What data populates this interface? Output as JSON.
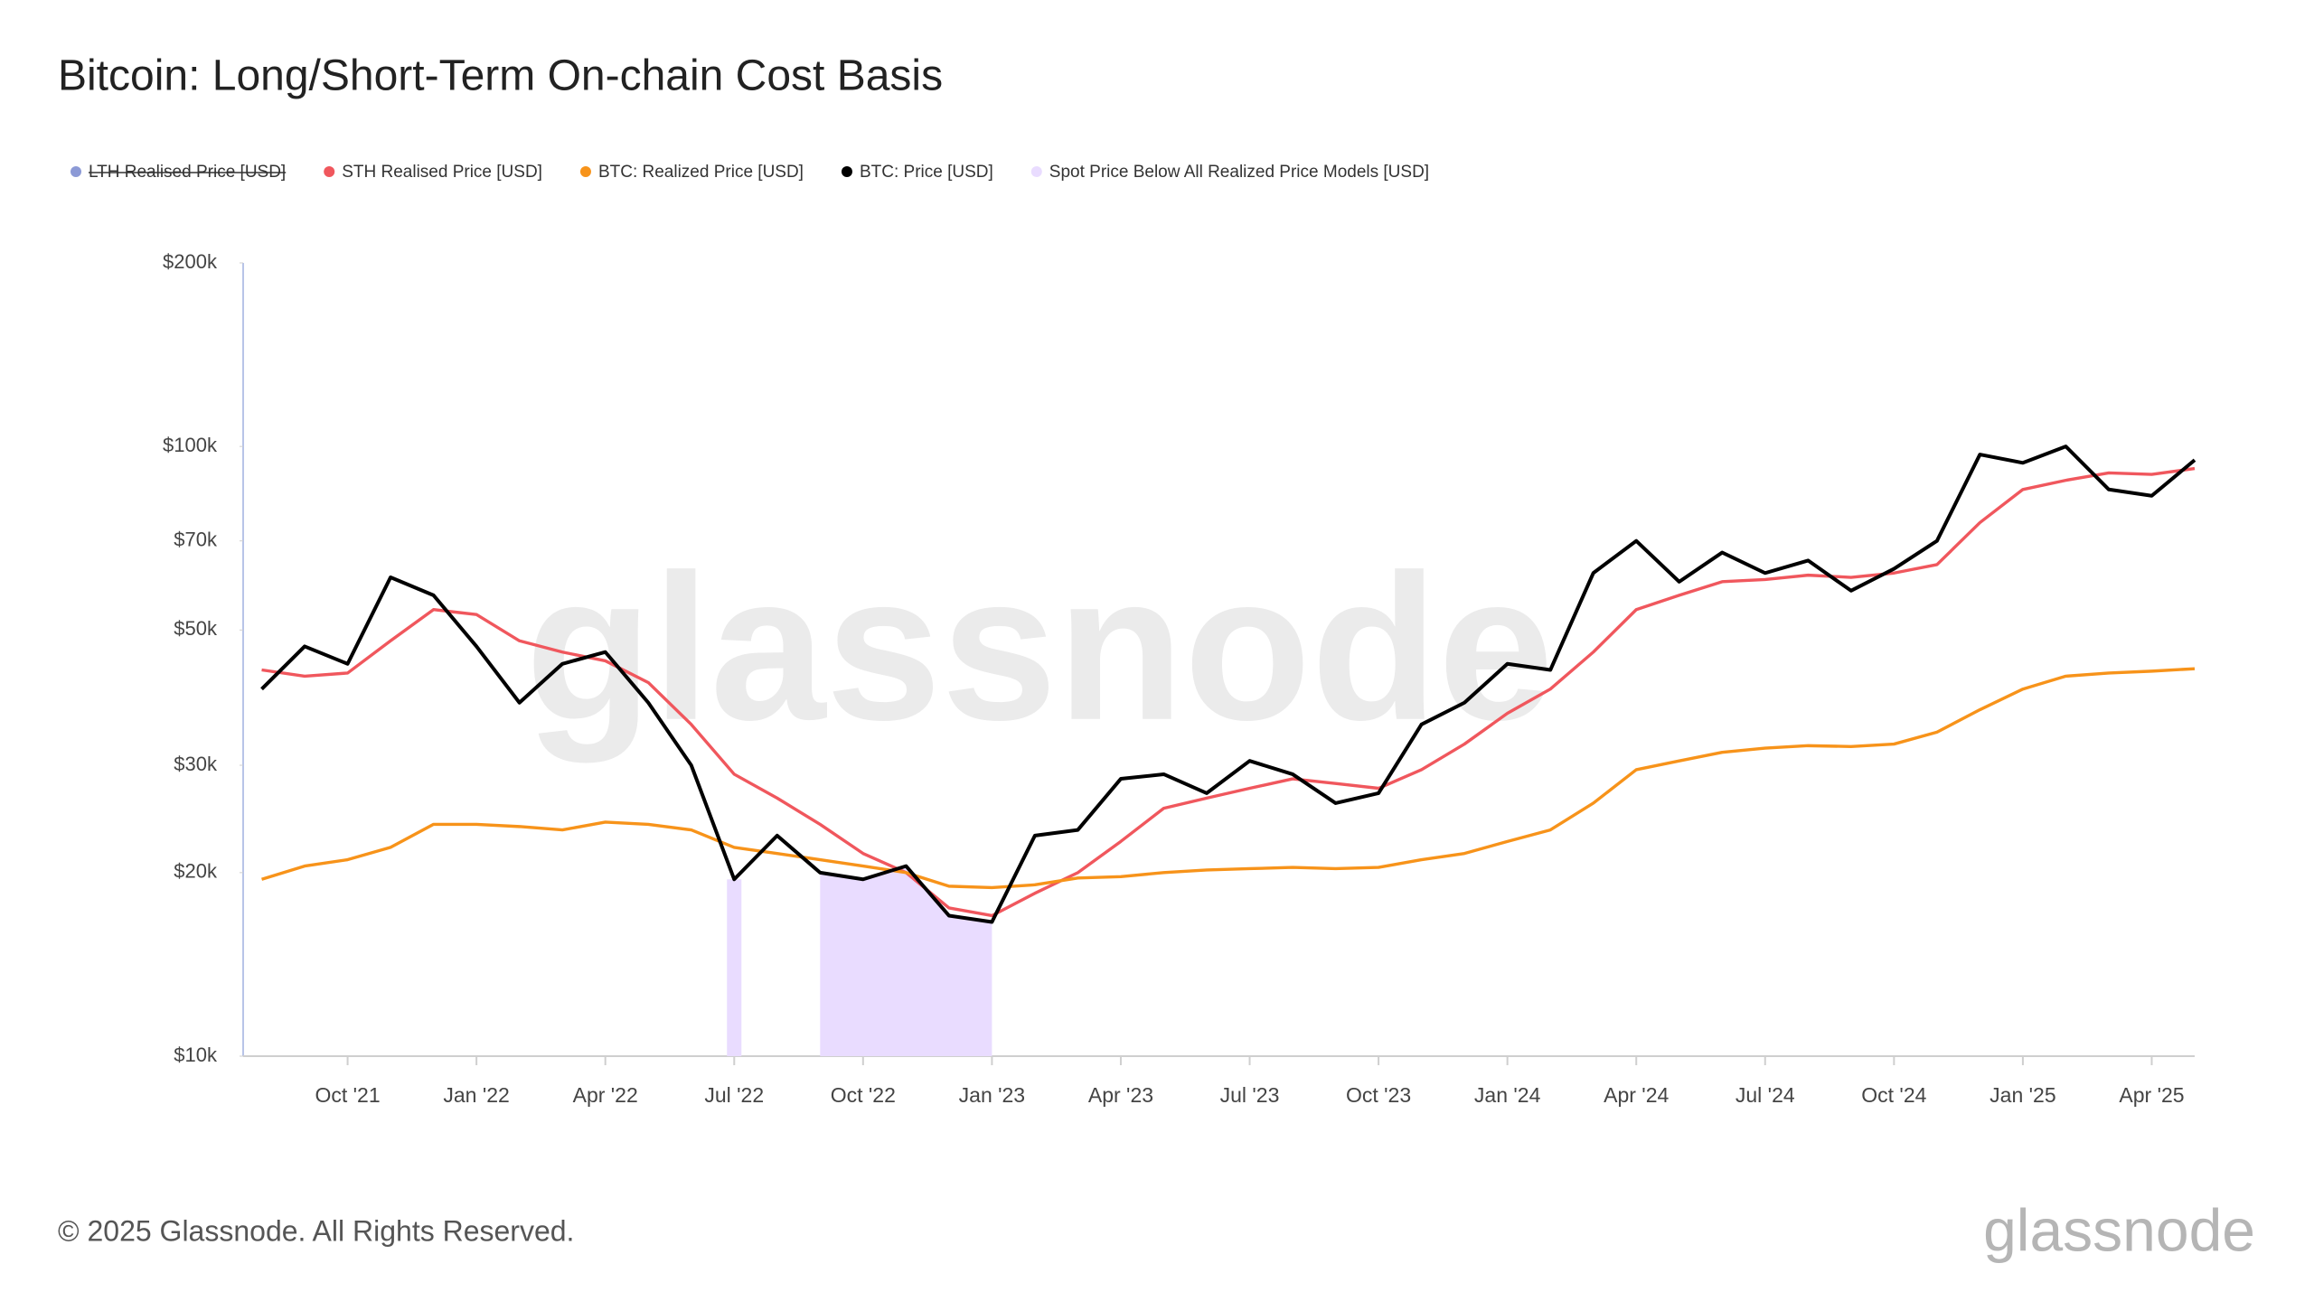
{
  "chart_data": {
    "type": "line",
    "title": "Bitcoin: Long/Short-Term On-chain Cost Basis",
    "footer": "© 2025 Glassnode. All Rights Reserved.",
    "logo": "glassnode",
    "watermark": "glassnode",
    "log_scale": true,
    "ylim": [
      10000,
      200000
    ],
    "yticks": [
      {
        "value": 10000,
        "label": "$10k"
      },
      {
        "value": 20000,
        "label": "$20k"
      },
      {
        "value": 30000,
        "label": "$30k"
      },
      {
        "value": 50000,
        "label": "$50k"
      },
      {
        "value": 70000,
        "label": "$70k"
      },
      {
        "value": 100000,
        "label": "$100k"
      },
      {
        "value": 200000,
        "label": "$200k"
      }
    ],
    "xlim": [
      "2021-07",
      "2025-05"
    ],
    "xticks": [
      {
        "value": "2021-10",
        "label": "Oct '21"
      },
      {
        "value": "2022-01",
        "label": "Jan '22"
      },
      {
        "value": "2022-04",
        "label": "Apr '22"
      },
      {
        "value": "2022-07",
        "label": "Jul '22"
      },
      {
        "value": "2022-10",
        "label": "Oct '22"
      },
      {
        "value": "2023-01",
        "label": "Jan '23"
      },
      {
        "value": "2023-04",
        "label": "Apr '23"
      },
      {
        "value": "2023-07",
        "label": "Jul '23"
      },
      {
        "value": "2023-10",
        "label": "Oct '23"
      },
      {
        "value": "2024-01",
        "label": "Jan '24"
      },
      {
        "value": "2024-04",
        "label": "Apr '24"
      },
      {
        "value": "2024-07",
        "label": "Jul '24"
      },
      {
        "value": "2024-10",
        "label": "Oct '24"
      },
      {
        "value": "2025-01",
        "label": "Jan '25"
      },
      {
        "value": "2025-04",
        "label": "Apr '25"
      }
    ],
    "x": [
      "2021-08",
      "2021-09",
      "2021-10",
      "2021-11",
      "2021-12",
      "2022-01",
      "2022-02",
      "2022-03",
      "2022-04",
      "2022-05",
      "2022-06",
      "2022-07",
      "2022-08",
      "2022-09",
      "2022-10",
      "2022-11",
      "2022-12",
      "2023-01",
      "2023-02",
      "2023-03",
      "2023-04",
      "2023-05",
      "2023-06",
      "2023-07",
      "2023-08",
      "2023-09",
      "2023-10",
      "2023-11",
      "2023-12",
      "2024-01",
      "2024-02",
      "2024-03",
      "2024-04",
      "2024-05",
      "2024-06",
      "2024-07",
      "2024-08",
      "2024-09",
      "2024-10",
      "2024-11",
      "2024-12",
      "2025-01",
      "2025-02",
      "2025-03",
      "2025-04",
      "2025-05"
    ],
    "series": [
      {
        "name": "LTH Realised Price [USD]",
        "color": "#8c9ad6",
        "visible": false
      },
      {
        "name": "STH Realised Price [USD]",
        "color": "#f0575d",
        "style": "line",
        "values": [
          43000,
          42000,
          42500,
          48000,
          54000,
          53000,
          48000,
          46000,
          44500,
          41000,
          35000,
          29000,
          26500,
          24000,
          21500,
          20000,
          17500,
          17000,
          18500,
          20000,
          22500,
          25500,
          26500,
          27500,
          28500,
          28000,
          27500,
          29500,
          32500,
          36500,
          40000,
          46000,
          54000,
          57000,
          60000,
          60500,
          61500,
          61000,
          62000,
          64000,
          75000,
          85000,
          88000,
          90500,
          90000,
          92000
        ]
      },
      {
        "name": "BTC: Realized Price [USD]",
        "color": "#f7931a",
        "style": "line",
        "values": [
          19500,
          20500,
          21000,
          22000,
          24000,
          24000,
          23800,
          23500,
          24200,
          24000,
          23500,
          22000,
          21500,
          21000,
          20500,
          20000,
          19000,
          18900,
          19100,
          19600,
          19700,
          20000,
          20200,
          20300,
          20400,
          20300,
          20400,
          21000,
          21500,
          22500,
          23500,
          26000,
          29500,
          30500,
          31500,
          32000,
          32300,
          32200,
          32500,
          34000,
          37000,
          40000,
          42000,
          42500,
          42800,
          43200
        ]
      },
      {
        "name": "BTC: Price [USD]",
        "color": "#000000",
        "style": "line",
        "values": [
          40000,
          47000,
          44000,
          61000,
          57000,
          47000,
          38000,
          44000,
          46000,
          38000,
          30000,
          19500,
          23000,
          20000,
          19500,
          20500,
          17000,
          16600,
          23000,
          23500,
          28500,
          29000,
          27000,
          30500,
          29000,
          26000,
          27000,
          35000,
          38000,
          44000,
          43000,
          62000,
          70000,
          60000,
          67000,
          62000,
          65000,
          58000,
          63000,
          70000,
          97000,
          94000,
          100000,
          85000,
          83000,
          95000
        ]
      },
      {
        "name": "Spot Price Below All Realized Price Models [USD]",
        "color": "#e9dcff",
        "style": "area",
        "values": [
          null,
          null,
          null,
          null,
          null,
          null,
          null,
          null,
          null,
          null,
          null,
          19500,
          null,
          20000,
          19500,
          20500,
          17000,
          16600,
          null,
          null,
          null,
          null,
          null,
          null,
          null,
          null,
          null,
          null,
          null,
          null,
          null,
          null,
          null,
          null,
          null,
          null,
          null,
          null,
          null,
          null,
          null,
          null,
          null,
          null,
          null,
          null
        ]
      }
    ]
  }
}
